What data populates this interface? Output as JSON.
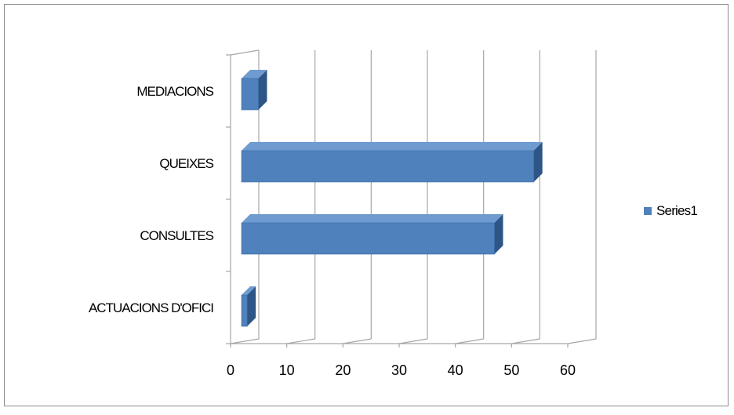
{
  "chart_data": {
    "type": "bar",
    "orientation": "horizontal",
    "style": "3d-clustered",
    "categories": [
      "ACTUACIONS D'OFICI",
      "CONSULTES",
      "QUEIXES",
      "MEDIACIONS"
    ],
    "series": [
      {
        "name": "Series1",
        "values": [
          1,
          45,
          52,
          3
        ],
        "color": "#4f81bd"
      }
    ],
    "xlim": [
      0,
      60
    ],
    "x_ticks": [
      0,
      10,
      20,
      30,
      40,
      50,
      60
    ],
    "tick_labels": [
      "0",
      "10",
      "20",
      "30",
      "40",
      "50",
      "60"
    ],
    "grid": true,
    "legend_position": "right",
    "colors": {
      "bar_front": "#4f81bd",
      "bar_top": "#6f9bd0",
      "bar_side": "#2d5687",
      "grid": "#a6a6a6",
      "border": "#8c8c8c"
    }
  }
}
